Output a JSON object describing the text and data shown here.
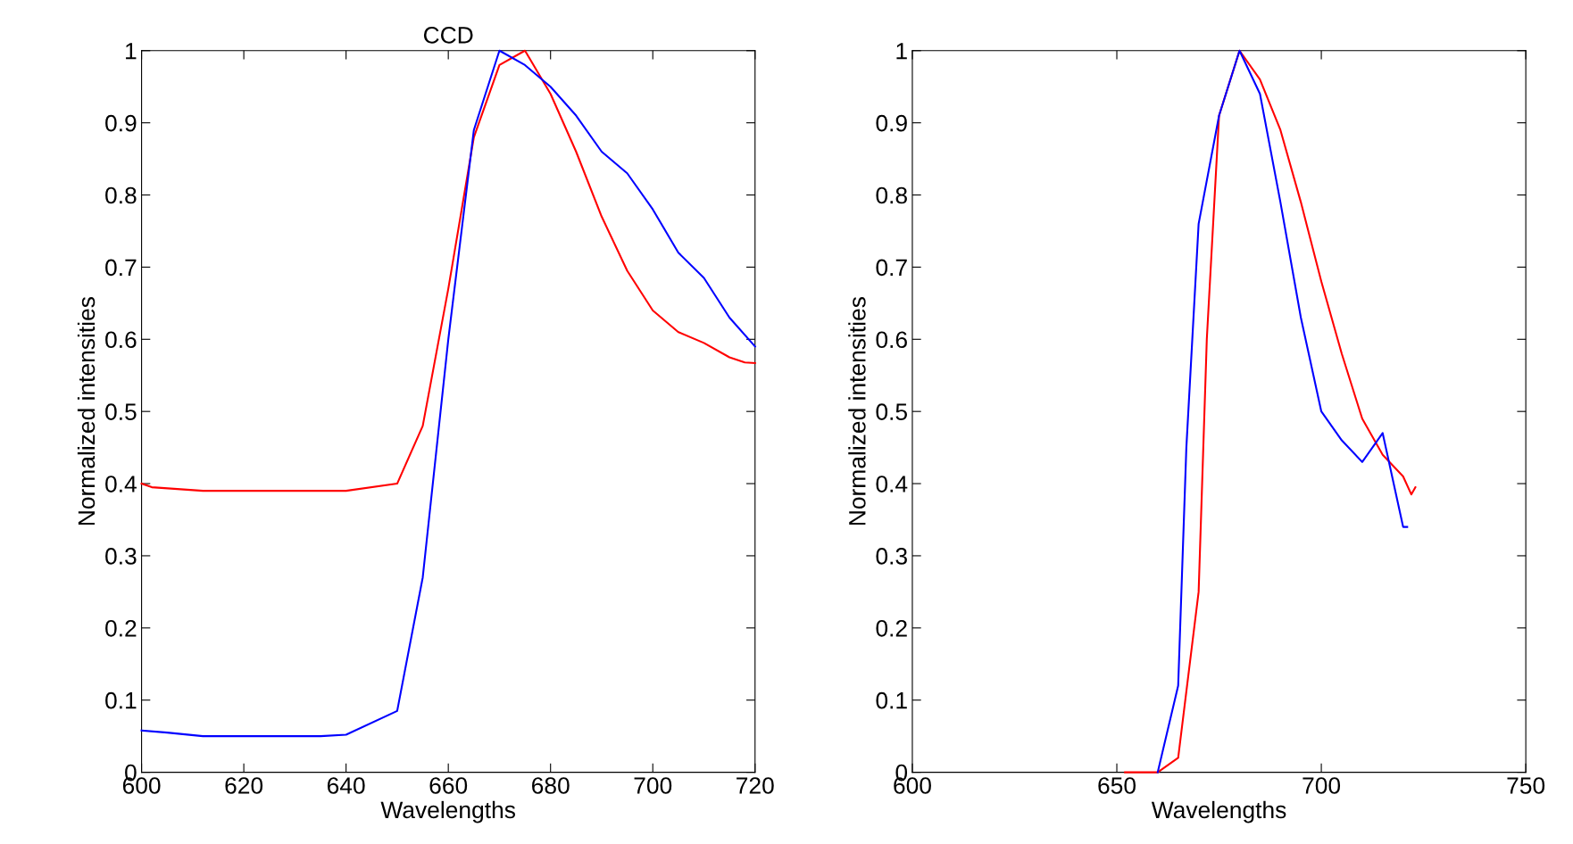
{
  "chart_data": [
    {
      "type": "line",
      "title": "CCD",
      "xlabel": "Wavelengths",
      "ylabel": "Normalized intensities",
      "xlim": [
        600,
        720
      ],
      "xticks": [
        600,
        620,
        640,
        660,
        680,
        700,
        720
      ],
      "ylim": [
        0,
        1
      ],
      "yticks": [
        0,
        0.1,
        0.2,
        0.3,
        0.4,
        0.5,
        0.6,
        0.7,
        0.8,
        0.9,
        1
      ],
      "grid": false,
      "series": [
        {
          "color": "#ff0000",
          "x": [
            600,
            602,
            612,
            640,
            650,
            655,
            660,
            665,
            670,
            675,
            680,
            685,
            690,
            695,
            700,
            705,
            710,
            715,
            718,
            720
          ],
          "values": [
            0.4,
            0.395,
            0.39,
            0.39,
            0.4,
            0.48,
            0.67,
            0.88,
            0.98,
            1.0,
            0.94,
            0.86,
            0.77,
            0.695,
            0.64,
            0.61,
            0.595,
            0.575,
            0.568,
            0.567
          ]
        },
        {
          "color": "#0000ff",
          "x": [
            600,
            605,
            612,
            635,
            640,
            650,
            655,
            660,
            665,
            670,
            675,
            680,
            685,
            690,
            695,
            700,
            705,
            710,
            715,
            720
          ],
          "values": [
            0.058,
            0.055,
            0.05,
            0.05,
            0.052,
            0.085,
            0.27,
            0.6,
            0.89,
            1.0,
            0.98,
            0.95,
            0.91,
            0.86,
            0.83,
            0.78,
            0.72,
            0.685,
            0.63,
            0.59
          ]
        }
      ]
    },
    {
      "type": "line",
      "xlabel": "Wavelengths",
      "ylabel": "Normalized intensities",
      "xlim": [
        600,
        750
      ],
      "xticks": [
        600,
        650,
        700,
        750
      ],
      "ylim": [
        0,
        1
      ],
      "yticks": [
        0,
        0.1,
        0.2,
        0.3,
        0.4,
        0.5,
        0.6,
        0.7,
        0.8,
        0.9,
        1
      ],
      "grid": false,
      "series": [
        {
          "color": "#ff0000",
          "x": [
            652,
            657,
            660,
            665,
            670,
            672,
            675,
            680,
            685,
            690,
            695,
            700,
            705,
            710,
            715,
            720,
            722,
            723
          ],
          "values": [
            0,
            0,
            0,
            0.02,
            0.25,
            0.6,
            0.91,
            1.0,
            0.96,
            0.89,
            0.79,
            0.68,
            0.58,
            0.49,
            0.44,
            0.41,
            0.385,
            0.395
          ]
        },
        {
          "color": "#0000ff",
          "x": [
            660,
            665,
            667,
            670,
            675,
            680,
            685,
            690,
            695,
            700,
            705,
            710,
            715,
            720,
            721
          ],
          "values": [
            0,
            0.12,
            0.45,
            0.76,
            0.91,
            1.0,
            0.94,
            0.79,
            0.63,
            0.5,
            0.46,
            0.43,
            0.47,
            0.34,
            0.34
          ]
        }
      ]
    }
  ]
}
